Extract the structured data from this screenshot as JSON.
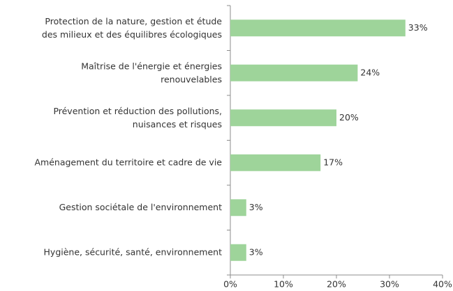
{
  "chart_data": {
    "type": "barh",
    "categories": [
      "Protection de la nature, gestion et étude\ndes milieux et des équilibres écologiques",
      "Maîtrise de l'énergie et énergies\nrenouvelables",
      "Prévention et réduction des pollutions,\nnuisances et risques",
      "Aménagement du territoire et cadre de vie",
      "Gestion sociétale de l'environnement",
      "Hygiène, sécurité, santé, environnement"
    ],
    "values": [
      33,
      24,
      20,
      17,
      3,
      3
    ],
    "value_labels": [
      "33%",
      "24%",
      "20%",
      "17%",
      "3%",
      "3%"
    ],
    "color": "#9ed49a",
    "xlim": [
      0,
      40
    ],
    "xticks": [
      {
        "value": 0,
        "label": "0%"
      },
      {
        "value": 10,
        "label": "10%"
      },
      {
        "value": 20,
        "label": "20%"
      },
      {
        "value": 30,
        "label": "30%"
      },
      {
        "value": 40,
        "label": "40%"
      }
    ],
    "grid": false
  }
}
